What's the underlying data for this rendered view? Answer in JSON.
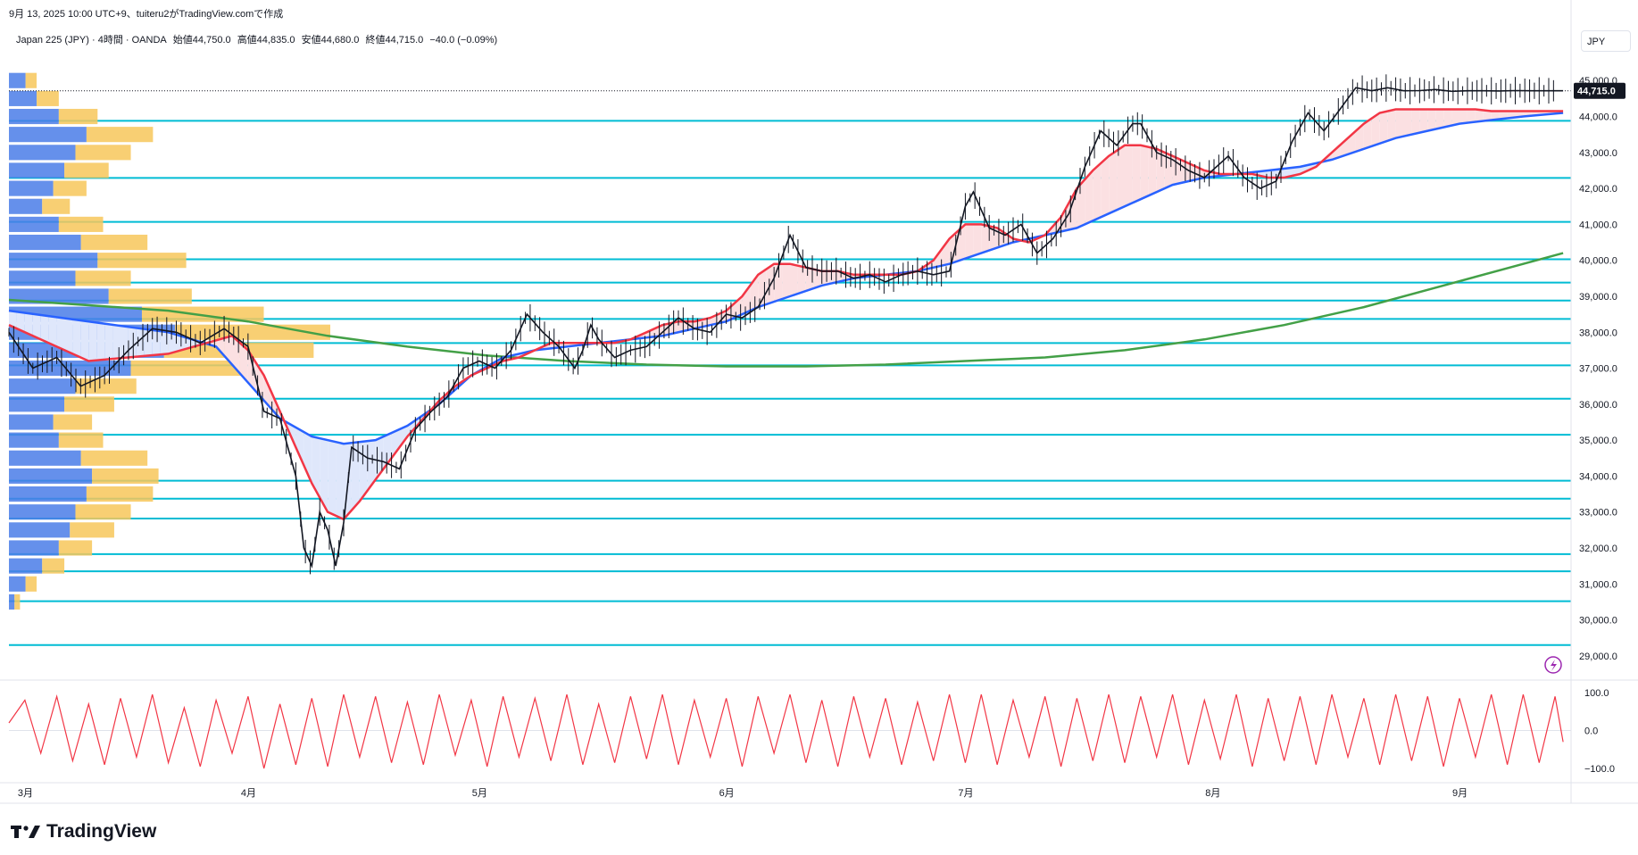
{
  "header": {
    "created_line": "9月 13, 2025 10:00 UTC+9、tuiteru2がTradingView.comで作成"
  },
  "legend": {
    "symbol": "Japan 225 (JPY) · 4時間 · OANDA",
    "open": "始値44,750.0",
    "high": "高値44,835.0",
    "low": "安値44,680.0",
    "close": "終値44,715.0",
    "change": "−40.0 (−0.09%)"
  },
  "currency": "JPY",
  "brand": "TradingView",
  "colors": {
    "price": "#131722",
    "ema_fast": "#f23645",
    "ema_slow": "#2962ff",
    "sma_long": "#43a047",
    "hline": "#00bcd4",
    "vp_up": "#4a7de8",
    "vp_down": "#f7c75a",
    "oscillator": "#f23645",
    "fill_up": "#fbe0e2",
    "fill_down": "#dfe7fb"
  },
  "chart_data": {
    "type": "line",
    "title": "",
    "xlabel": "",
    "ylabel": "",
    "ylim": [
      28500,
      45800
    ],
    "last_price": "44,715.0",
    "y_ticks": [
      "45,000.0",
      "44,000.0",
      "43,000.0",
      "42,000.0",
      "41,000.0",
      "40,000.0",
      "39,000.0",
      "38,000.0",
      "37,000.0",
      "36,000.0",
      "35,000.0",
      "34,000.0",
      "33,000.0",
      "32,000.0",
      "31,000.0",
      "30,000.0",
      "29,000.0"
    ],
    "x_ticks": [
      "3月",
      "4月",
      "5月",
      "6月",
      "7月",
      "8月",
      "9月"
    ],
    "x_tick_days": [
      2,
      30,
      59,
      90,
      120,
      151,
      182
    ],
    "x_range_days": [
      0,
      196
    ],
    "horizontal_levels": [
      43880,
      42290,
      41070,
      40030,
      39380,
      38880,
      38370,
      37700,
      37080,
      36150,
      35150,
      33870,
      33370,
      32820,
      31830,
      31350,
      30520,
      29300
    ],
    "series": [
      {
        "name": "",
        "key": "price",
        "x": [
          0,
          3,
          6,
          9,
          12,
          15,
          18,
          21,
          24,
          27,
          30,
          32,
          34,
          36,
          37,
          38,
          39,
          40,
          41,
          42,
          43,
          45,
          47,
          49,
          51,
          53,
          55,
          57,
          59,
          61,
          63,
          65,
          67,
          69,
          70,
          71,
          72,
          73,
          74,
          76,
          78,
          80,
          82,
          84,
          86,
          88,
          90,
          92,
          94,
          96,
          98,
          100,
          102,
          104,
          106,
          108,
          110,
          112,
          114,
          116,
          118,
          120,
          121,
          123,
          125,
          127,
          129,
          131,
          133,
          135,
          137,
          139,
          141,
          142,
          144,
          146,
          148,
          150,
          151,
          153,
          155,
          157,
          159,
          161,
          163,
          165,
          167,
          169,
          171,
          173,
          175,
          177,
          179,
          181,
          183,
          185,
          187,
          189,
          191,
          193,
          194,
          195
        ],
        "y": [
          38000,
          37000,
          37300,
          36500,
          36800,
          37500,
          38100,
          38000,
          37700,
          38100,
          37600,
          35800,
          35600,
          34000,
          32000,
          31500,
          33000,
          32500,
          31500,
          32700,
          34800,
          34500,
          34400,
          34200,
          35300,
          35800,
          36200,
          37000,
          37200,
          37000,
          37500,
          38500,
          38000,
          37600,
          37300,
          37000,
          37500,
          38200,
          37800,
          37300,
          37500,
          37600,
          38000,
          38400,
          38100,
          38000,
          38500,
          38400,
          38700,
          39500,
          40700,
          39800,
          39700,
          39700,
          39500,
          39600,
          39400,
          39600,
          39700,
          39600,
          39700,
          41500,
          41900,
          40900,
          40700,
          41000,
          40200,
          40600,
          41300,
          42600,
          43600,
          43200,
          43800,
          43800,
          43000,
          42800,
          42500,
          42300,
          42500,
          42900,
          42300,
          42000,
          42200,
          43300,
          44100,
          43600,
          44200,
          44800,
          44715,
          44800,
          44715,
          44720,
          44750,
          44700,
          44715,
          44715,
          44710,
          44720,
          44715,
          44715,
          44715,
          44715
        ]
      },
      {
        "name": "",
        "key": "ema_fast",
        "x": [
          0,
          10,
          20,
          28,
          30,
          32,
          34,
          36,
          38,
          40,
          42,
          44,
          46,
          48,
          50,
          52,
          54,
          56,
          58,
          60,
          62,
          64,
          66,
          68,
          70,
          72,
          74,
          76,
          78,
          80,
          82,
          84,
          86,
          88,
          90,
          92,
          94,
          96,
          98,
          100,
          102,
          104,
          106,
          108,
          110,
          112,
          114,
          116,
          118,
          120,
          122,
          124,
          126,
          128,
          130,
          132,
          134,
          136,
          138,
          140,
          142,
          144,
          146,
          148,
          150,
          152,
          154,
          156,
          158,
          160,
          162,
          164,
          166,
          168,
          170,
          172,
          174,
          176,
          178,
          180,
          182,
          184,
          186,
          188,
          190,
          192,
          194,
          195
        ],
        "y": [
          38200,
          37200,
          37400,
          37900,
          37500,
          36800,
          35800,
          34800,
          33800,
          33000,
          32800,
          33300,
          33900,
          34500,
          35100,
          35600,
          36100,
          36500,
          36800,
          37000,
          37200,
          37300,
          37500,
          37700,
          37700,
          37700,
          37700,
          37700,
          37800,
          38000,
          38200,
          38300,
          38300,
          38400,
          38600,
          39000,
          39600,
          39900,
          39900,
          39800,
          39700,
          39700,
          39600,
          39600,
          39600,
          39600,
          39700,
          40000,
          40600,
          41000,
          41000,
          40900,
          40600,
          40500,
          40700,
          41200,
          42000,
          42500,
          42900,
          43200,
          43200,
          43100,
          42900,
          42700,
          42500,
          42400,
          42400,
          42400,
          42300,
          42300,
          42400,
          42600,
          43000,
          43400,
          43800,
          44100,
          44200,
          44200,
          44200,
          44200,
          44200,
          44200,
          44150,
          44150,
          44150,
          44150,
          44150,
          44150
        ]
      },
      {
        "name": "",
        "key": "ema_slow",
        "x": [
          0,
          10,
          20,
          26,
          30,
          34,
          38,
          42,
          46,
          50,
          54,
          58,
          62,
          66,
          70,
          74,
          78,
          82,
          86,
          90,
          94,
          98,
          102,
          106,
          110,
          114,
          118,
          122,
          126,
          130,
          134,
          138,
          142,
          146,
          150,
          154,
          158,
          162,
          166,
          170,
          174,
          178,
          182,
          186,
          190,
          195
        ],
        "y": [
          38600,
          38300,
          38000,
          37600,
          36600,
          35600,
          35100,
          34900,
          35000,
          35400,
          36000,
          36800,
          37300,
          37500,
          37600,
          37700,
          37800,
          37900,
          38100,
          38300,
          38700,
          39000,
          39300,
          39500,
          39600,
          39700,
          39900,
          40200,
          40500,
          40700,
          40900,
          41300,
          41700,
          42100,
          42300,
          42400,
          42500,
          42600,
          42800,
          43100,
          43400,
          43600,
          43800,
          43900,
          44000,
          44100
        ]
      },
      {
        "name": "",
        "key": "sma_long",
        "x": [
          0,
          10,
          20,
          30,
          40,
          50,
          60,
          70,
          80,
          90,
          100,
          110,
          120,
          130,
          140,
          150,
          160,
          170,
          180,
          190,
          195
        ],
        "y": [
          38900,
          38750,
          38600,
          38300,
          37900,
          37600,
          37350,
          37200,
          37100,
          37050,
          37050,
          37100,
          37200,
          37300,
          37500,
          37800,
          38200,
          38700,
          39300,
          39900,
          40200
        ]
      },
      {
        "name": "",
        "key": "oscillator",
        "x": [
          0,
          2,
          4,
          6,
          8,
          10,
          12,
          14,
          16,
          18,
          20,
          22,
          24,
          26,
          28,
          30,
          32,
          34,
          36,
          38,
          40,
          42,
          44,
          46,
          48,
          50,
          52,
          54,
          56,
          58,
          60,
          62,
          64,
          66,
          68,
          70,
          72,
          74,
          76,
          78,
          80,
          82,
          84,
          86,
          88,
          90,
          92,
          94,
          96,
          98,
          100,
          102,
          104,
          106,
          108,
          110,
          112,
          114,
          116,
          118,
          120,
          122,
          124,
          126,
          128,
          130,
          132,
          134,
          136,
          138,
          140,
          142,
          144,
          146,
          148,
          150,
          152,
          154,
          156,
          158,
          160,
          162,
          164,
          166,
          168,
          170,
          172,
          174,
          176,
          178,
          180,
          182,
          184,
          186,
          188,
          190,
          192,
          194,
          195
        ],
        "y": [
          20,
          80,
          -60,
          90,
          -80,
          70,
          -90,
          85,
          -70,
          95,
          -85,
          60,
          -95,
          80,
          -60,
          90,
          -100,
          70,
          -90,
          85,
          -95,
          95,
          -70,
          90,
          -85,
          75,
          -90,
          95,
          -65,
          80,
          -95,
          90,
          -70,
          85,
          -80,
          95,
          -90,
          70,
          -85,
          90,
          -75,
          95,
          -90,
          80,
          -70,
          85,
          -95,
          90,
          -60,
          95,
          -85,
          80,
          -95,
          90,
          -70,
          85,
          -90,
          75,
          -80,
          95,
          -85,
          95,
          -90,
          80,
          -70,
          90,
          -95,
          85,
          -80,
          95,
          -85,
          90,
          -70,
          95,
          -90,
          80,
          -75,
          95,
          -95,
          85,
          -80,
          90,
          -90,
          95,
          -70,
          85,
          -90,
          95,
          -80,
          90,
          -95,
          85,
          -70,
          95,
          -90,
          95,
          -85,
          90,
          -30
        ]
      }
    ],
    "oscillator_ticks": [
      "100.0",
      "0.0",
      "−100.0"
    ],
    "volume_profile": {
      "price_levels": [
        45000,
        44500,
        44000,
        43500,
        43000,
        42500,
        42000,
        41500,
        41000,
        40500,
        40000,
        39500,
        39000,
        38500,
        38000,
        37500,
        37000,
        36500,
        36000,
        35500,
        35000,
        34500,
        34000,
        33500,
        33000,
        32500,
        32000,
        31500,
        31000,
        30500
      ],
      "up_volume": [
        3,
        5,
        9,
        14,
        12,
        10,
        8,
        6,
        9,
        13,
        16,
        12,
        18,
        24,
        30,
        28,
        22,
        12,
        10,
        8,
        9,
        13,
        15,
        14,
        12,
        11,
        9,
        6,
        3,
        1
      ],
      "down_volume": [
        2,
        4,
        7,
        12,
        10,
        8,
        6,
        5,
        8,
        12,
        16,
        10,
        15,
        22,
        28,
        27,
        20,
        11,
        9,
        7,
        8,
        12,
        12,
        12,
        10,
        8,
        6,
        4,
        2,
        1
      ]
    }
  }
}
